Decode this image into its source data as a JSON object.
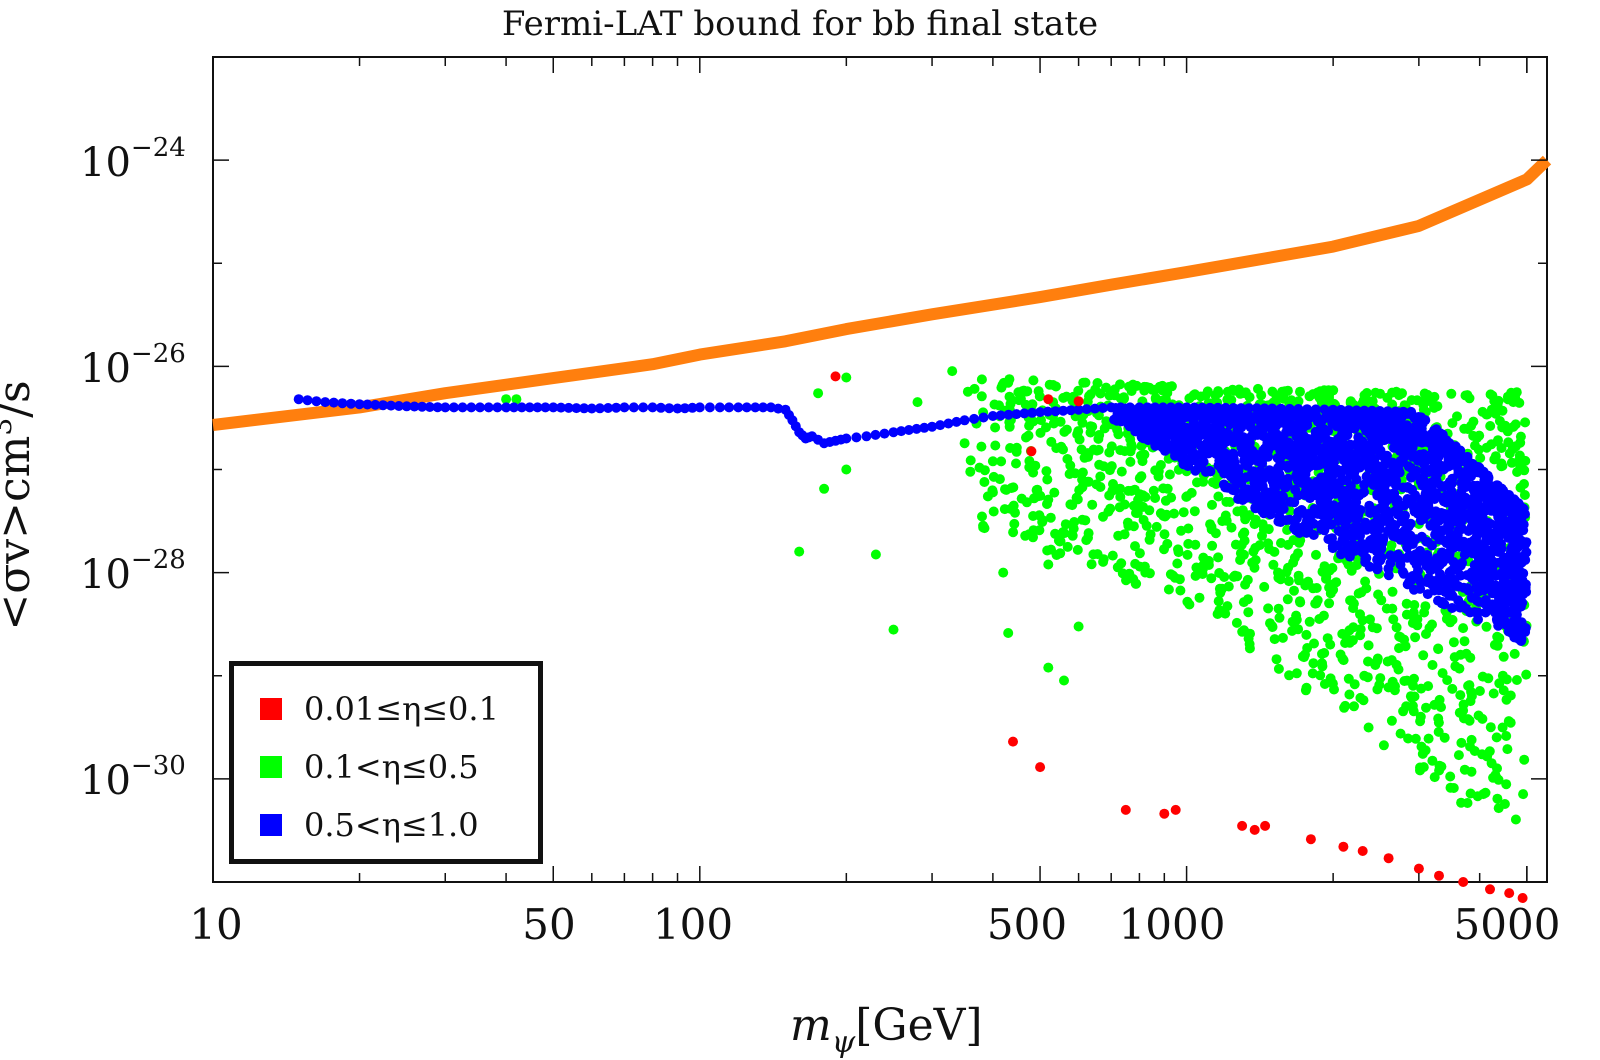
{
  "chart_data": {
    "type": "scatter",
    "title": "Fermi-LAT bound for bb final state",
    "xlabel": "m_ψ[GeV]",
    "xlabel_main": "m",
    "xlabel_sub": "ψ",
    "xlabel_unit": "[GeV]",
    "ylabel": "<σv>cm³/s",
    "ylabel_main": "<σv>cm",
    "ylabel_sup": "3",
    "ylabel_unit": "/s",
    "xscale": "log",
    "yscale": "log",
    "xlim": [
      10,
      5500
    ],
    "ylim": [
      1e-31,
      1e-23
    ],
    "x_ticks": [
      {
        "value": 10,
        "label": "10"
      },
      {
        "value": 50,
        "label": "50"
      },
      {
        "value": 100,
        "label": "100"
      },
      {
        "value": 500,
        "label": "500"
      },
      {
        "value": 1000,
        "label": "1000"
      },
      {
        "value": 5000,
        "label": "5000"
      }
    ],
    "y_ticks": [
      {
        "value": 1e-24,
        "base": "10",
        "exp": "−24"
      },
      {
        "value": 1e-26,
        "base": "10",
        "exp": "−26"
      },
      {
        "value": 1e-28,
        "base": "10",
        "exp": "−28"
      },
      {
        "value": 1e-30,
        "base": "10",
        "exp": "−30"
      }
    ],
    "bound": {
      "name": "Fermi-LAT bound",
      "color": "#ff7f0e",
      "x": [
        10,
        20,
        30,
        50,
        80,
        100,
        150,
        200,
        300,
        500,
        700,
        1000,
        2000,
        3000,
        5000,
        5500
      ],
      "y": [
        2.7e-27,
        4e-27,
        5.5e-27,
        7.7e-27,
        1.05e-26,
        1.3e-26,
        1.75e-26,
        2.3e-26,
        3.2e-26,
        4.7e-26,
        6.2e-26,
        8.2e-26,
        1.45e-25,
        2.3e-25,
        6.5e-25,
        1e-24
      ]
    },
    "legend": {
      "position": "bottom-left",
      "entries": [
        {
          "label": "0.01≤η≤0.1",
          "color": "#ff0000"
        },
        {
          "label": "0.1<η≤0.5",
          "color": "#00ff00"
        },
        {
          "label": "0.5<η≤1.0",
          "color": "#0000ff"
        }
      ]
    },
    "series": [
      {
        "name": "0.01≤η≤0.1",
        "color": "#ff0000",
        "points": [
          [
            190,
            8e-27
          ],
          [
            520,
            4.8e-27
          ],
          [
            600,
            4.6e-27
          ],
          [
            480,
            1.5e-27
          ],
          [
            440,
            2.3e-30
          ],
          [
            500,
            1.3e-30
          ],
          [
            750,
            5e-31
          ],
          [
            900,
            4.6e-31
          ],
          [
            950,
            5e-31
          ],
          [
            1300,
            3.5e-31
          ],
          [
            1380,
            3.2e-31
          ],
          [
            1450,
            3.5e-31
          ],
          [
            1800,
            2.6e-31
          ],
          [
            2100,
            2.2e-31
          ],
          [
            2300,
            2e-31
          ],
          [
            2600,
            1.7e-31
          ],
          [
            3000,
            1.35e-31
          ],
          [
            3300,
            1.15e-31
          ],
          [
            3700,
            1e-31
          ],
          [
            4200,
            8.5e-32
          ],
          [
            4600,
            7.8e-32
          ],
          [
            4900,
            7e-32
          ]
        ]
      },
      {
        "name": "0.1<η≤0.5",
        "color": "#00ff00",
        "bands": [
          {
            "x_min": 350,
            "x_max": 5000,
            "y_top_log_at": [
              [
                350,
                -26.1
              ],
              [
                1000,
                -26.2
              ],
              [
                3000,
                -26.25
              ]
            ],
            "y_bot_log_at": [
              [
                350,
                -27.5
              ],
              [
                1000,
                -28.3
              ],
              [
                5000,
                -30.7
              ]
            ],
            "n": 1400,
            "seed": 7
          }
        ],
        "points": [
          [
            40,
            4.8e-27
          ],
          [
            42,
            4.8e-27
          ],
          [
            175,
            5.5e-27
          ],
          [
            200,
            7.8e-27
          ],
          [
            160,
            1.6e-28
          ],
          [
            180,
            6.5e-28
          ],
          [
            200,
            1e-27
          ],
          [
            230,
            1.5e-28
          ],
          [
            250,
            2.8e-29
          ],
          [
            280,
            4.5e-27
          ],
          [
            330,
            9e-27
          ],
          [
            350,
            1.8e-27
          ],
          [
            400,
            1.2e-27
          ],
          [
            380,
            3.5e-28
          ],
          [
            420,
            1e-28
          ],
          [
            400,
            6e-28
          ],
          [
            430,
            2.6e-29
          ],
          [
            520,
            1.2e-28
          ],
          [
            560,
            9e-30
          ],
          [
            600,
            3e-29
          ],
          [
            640,
            2.6e-27
          ],
          [
            520,
            1.2e-29
          ]
        ]
      },
      {
        "name": "0.5<η≤1.0",
        "color": "#0000ff",
        "line_x": [
          15,
          17,
          20,
          25,
          30,
          40,
          50,
          60,
          70,
          80,
          90,
          100,
          110,
          120,
          130,
          140,
          150,
          155,
          160,
          165,
          170,
          180,
          190,
          200,
          220,
          250,
          300,
          350,
          400,
          500,
          600,
          700,
          800,
          1000,
          1500,
          2000,
          3000
        ],
        "line_y": [
          4.8e-27,
          4.5e-27,
          4.3e-27,
          4.1e-27,
          4e-27,
          4e-27,
          4e-27,
          3.9e-27,
          4e-27,
          4e-27,
          3.9e-27,
          4e-27,
          4e-27,
          4e-27,
          4e-27,
          4e-27,
          3.8e-27,
          3e-27,
          2.3e-27,
          2e-27,
          2.1e-27,
          1.8e-27,
          1.9e-27,
          2e-27,
          2.1e-27,
          2.3e-27,
          2.6e-27,
          3e-27,
          3.3e-27,
          3.6e-27,
          3.8e-27,
          4e-27,
          4e-27,
          4e-27,
          3.9e-27,
          3.8e-27,
          3.6e-27
        ],
        "bands": [
          {
            "x_min": 700,
            "x_max": 5000,
            "y_top_log_at": [
              [
                700,
                -26.4
              ],
              [
                3000,
                -26.45
              ],
              [
                5000,
                -27.4
              ]
            ],
            "y_bot_log_at": [
              [
                700,
                -26.5
              ],
              [
                1500,
                -27.5
              ],
              [
                5000,
                -28.7
              ]
            ],
            "n": 2000,
            "seed": 13
          }
        ]
      }
    ]
  }
}
